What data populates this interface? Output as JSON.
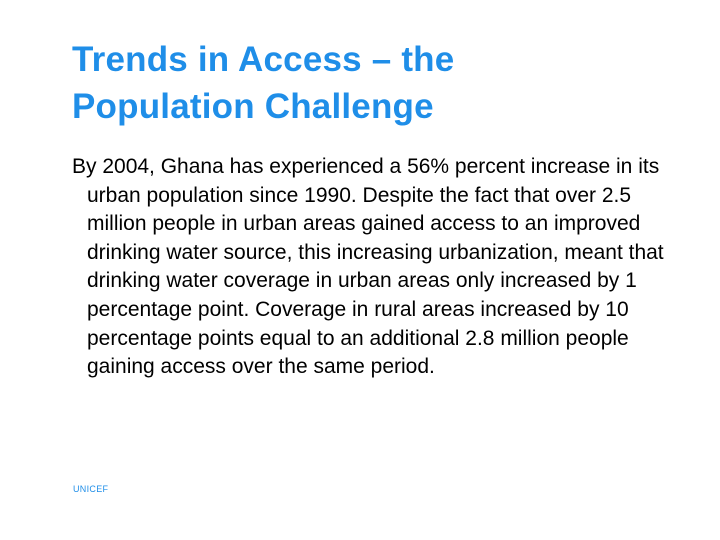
{
  "slide": {
    "title_line1": "Trends in Access – the",
    "title_line2": "Population Challenge",
    "body": "By 2004, Ghana has experienced a 56% percent increase in its urban population since 1990. Despite the fact that over 2.5 million people in urban areas gained access to an improved drinking water source, this increasing urbanization, meant that drinking water coverage in urban areas only increased by 1 percentage point. Coverage in rural areas increased by 10 percentage points equal to an additional 2.8 million people gaining access over the same period.",
    "footer": "UNICEF"
  },
  "colors": {
    "title": "#1f8ee8",
    "footer": "#1f8ee8",
    "body": "#000000",
    "background": "#ffffff"
  }
}
